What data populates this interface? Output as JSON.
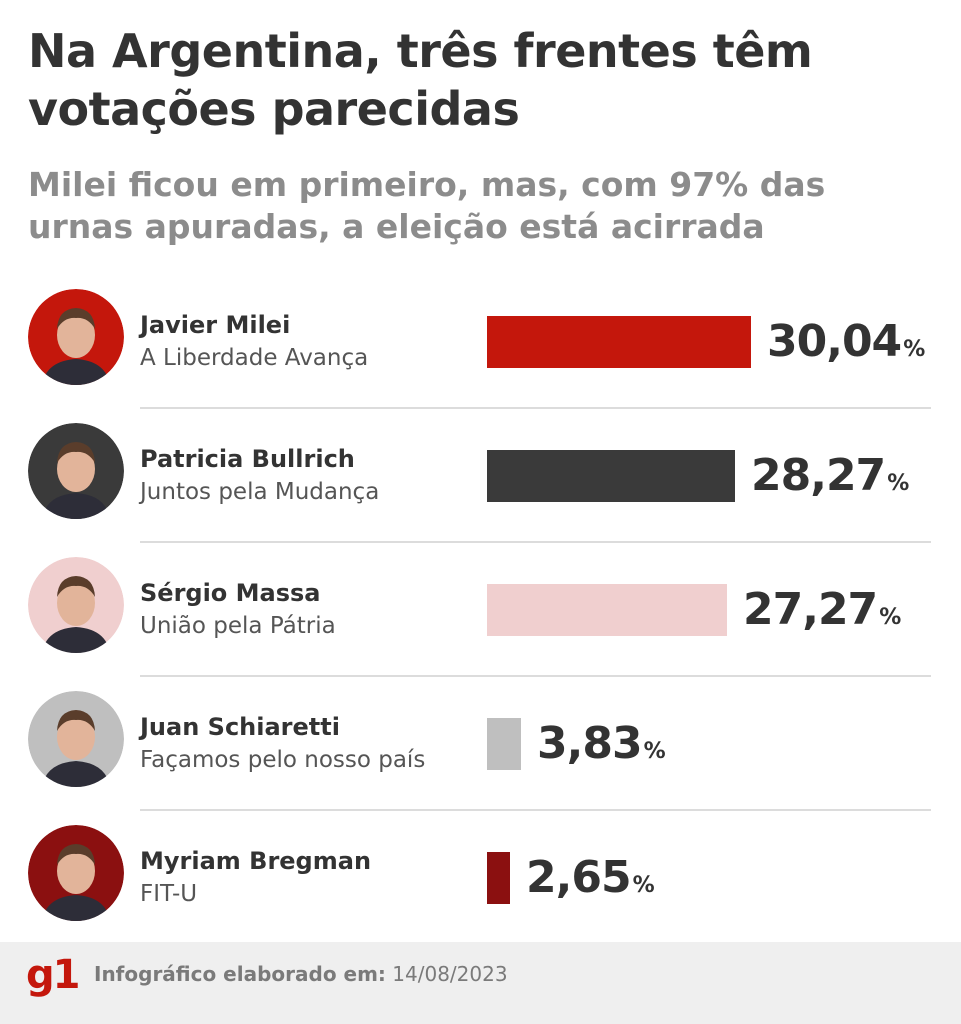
{
  "title": "Na Argentina, três frentes têm votações parecidas",
  "subtitle": "Milei ficou em primeiro, mas, com 97% das urnas apuradas, a eleição está acirrada",
  "chart_data": {
    "type": "bar",
    "orientation": "horizontal",
    "value_unit": "%",
    "categories": [
      "Javier Milei",
      "Patricia Bullrich",
      "Sérgio Massa",
      "Juan Schiaretti",
      "Myriam Bregman"
    ],
    "values": [
      30.04,
      28.27,
      27.27,
      3.83,
      2.65
    ],
    "grid": false,
    "rows": [
      {
        "name": "Javier Milei",
        "party": "A Liberdade Avança",
        "value": 30.04,
        "value_text": "30,04",
        "color": "#c4170c",
        "avatar_bg": "#c4170c"
      },
      {
        "name": "Patricia Bullrich",
        "party": "Juntos pela Mudança",
        "value": 28.27,
        "value_text": "28,27",
        "color": "#3a3a3a",
        "avatar_bg": "#3a3a3a"
      },
      {
        "name": "Sérgio Massa",
        "party": "União pela Pátria",
        "value": 27.27,
        "value_text": "27,27",
        "color": "#f0cfcf",
        "avatar_bg": "#f0cfcf"
      },
      {
        "name": "Juan Schiaretti",
        "party": "Façamos pelo nosso país",
        "value": 3.83,
        "value_text": "3,83",
        "color": "#bfbfbf",
        "avatar_bg": "#bfbfbf"
      },
      {
        "name": "Myriam Bregman",
        "party": "FIT-U",
        "value": 2.65,
        "value_text": "2,65",
        "color": "#8b1010",
        "avatar_bg": "#8b1010"
      }
    ],
    "percent_symbol": "%"
  },
  "footer": {
    "logo": "g1",
    "label": "Infográfico elaborado em:",
    "date": "14/08/2023"
  }
}
